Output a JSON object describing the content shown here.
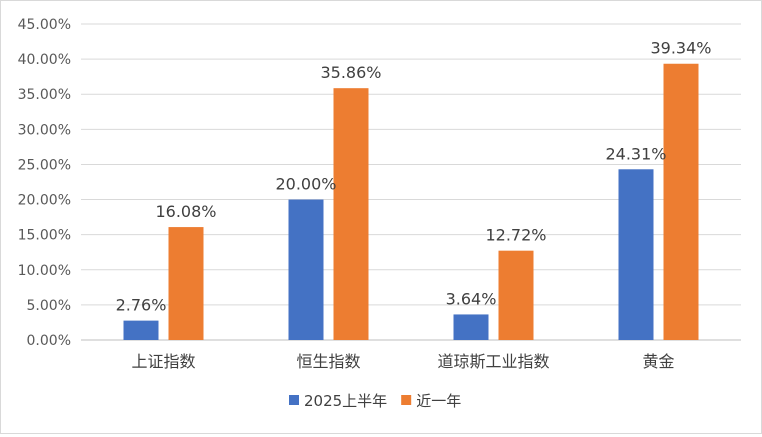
{
  "chart_data": {
    "type": "bar",
    "categories": [
      "上证指数",
      "恒生指数",
      "道琼斯工业指数",
      "黄金"
    ],
    "series": [
      {
        "name": "2025上半年",
        "values": [
          2.76,
          20.0,
          3.64,
          24.31
        ],
        "labels": [
          "2.76%",
          "20.00%",
          "3.64%",
          "24.31%"
        ],
        "color": "#4472C4"
      },
      {
        "name": "近一年",
        "values": [
          16.08,
          35.86,
          12.72,
          39.34
        ],
        "labels": [
          "16.08%",
          "35.86%",
          "12.72%",
          "39.34%"
        ],
        "color": "#ED7D31"
      }
    ],
    "ylim": [
      0,
      45
    ],
    "yticks": [
      0,
      5,
      10,
      15,
      20,
      25,
      30,
      35,
      40,
      45
    ],
    "ytick_labels": [
      "0.00%",
      "5.00%",
      "10.00%",
      "15.00%",
      "20.00%",
      "25.00%",
      "30.00%",
      "35.00%",
      "40.00%",
      "45.00%"
    ],
    "grid": true,
    "legend_position": "bottom",
    "gridline_color": "#d9d9d9",
    "axis_color": "#bfbfbf"
  }
}
